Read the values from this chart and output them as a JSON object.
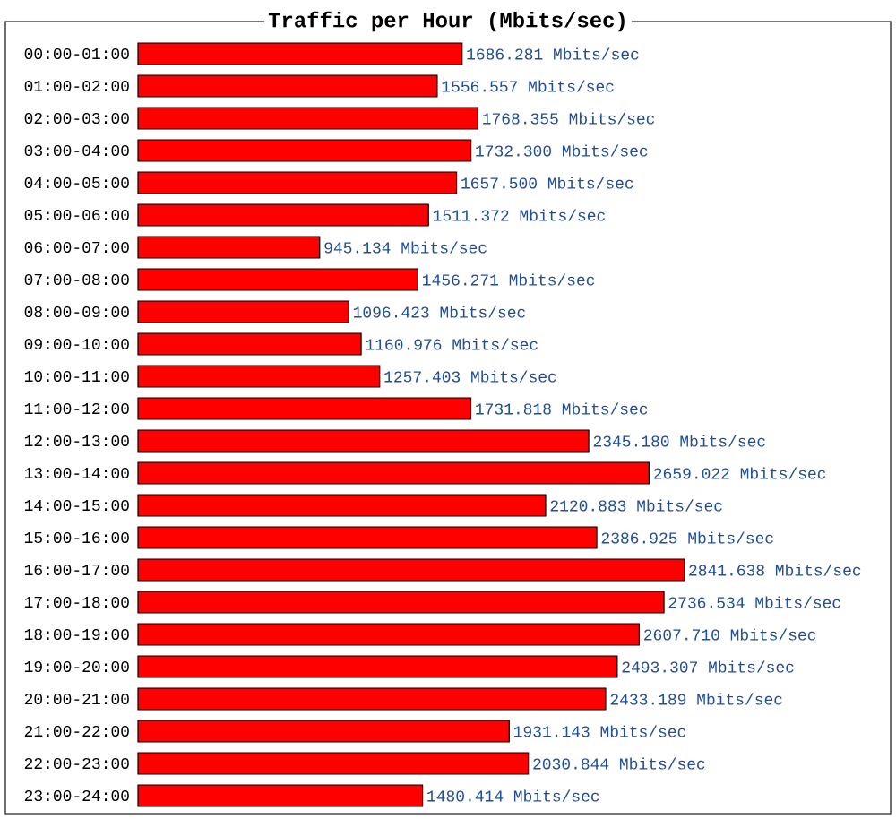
{
  "chart_data": {
    "type": "bar",
    "orientation": "horizontal",
    "title": "Traffic per Hour (Mbits/sec)",
    "categories": [
      "00:00-01:00",
      "01:00-02:00",
      "02:00-03:00",
      "03:00-04:00",
      "04:00-05:00",
      "05:00-06:00",
      "06:00-07:00",
      "07:00-08:00",
      "08:00-09:00",
      "09:00-10:00",
      "10:00-11:00",
      "11:00-12:00",
      "12:00-13:00",
      "13:00-14:00",
      "14:00-15:00",
      "15:00-16:00",
      "16:00-17:00",
      "17:00-18:00",
      "18:00-19:00",
      "19:00-20:00",
      "20:00-21:00",
      "21:00-22:00",
      "22:00-23:00",
      "23:00-24:00"
    ],
    "values": [
      1686.281,
      1556.557,
      1768.355,
      1732.3,
      1657.5,
      1511.372,
      945.134,
      1456.271,
      1096.423,
      1160.976,
      1257.403,
      1731.818,
      2345.18,
      2659.022,
      2120.883,
      2386.925,
      2841.638,
      2736.534,
      2607.71,
      2493.307,
      2433.189,
      1931.143,
      2030.844,
      1480.414
    ],
    "value_labels": [
      "1686.281 Mbits/sec",
      "1556.557 Mbits/sec",
      "1768.355 Mbits/sec",
      "1732.300 Mbits/sec",
      "1657.500 Mbits/sec",
      "1511.372 Mbits/sec",
      "945.134 Mbits/sec",
      "1456.271 Mbits/sec",
      "1096.423 Mbits/sec",
      "1160.976 Mbits/sec",
      "1257.403 Mbits/sec",
      "1731.818 Mbits/sec",
      "2345.180 Mbits/sec",
      "2659.022 Mbits/sec",
      "2120.883 Mbits/sec",
      "2386.925 Mbits/sec",
      "2841.638 Mbits/sec",
      "2736.534 Mbits/sec",
      "2607.710 Mbits/sec",
      "2493.307 Mbits/sec",
      "2433.189 Mbits/sec",
      "1931.143 Mbits/sec",
      "2030.844 Mbits/sec",
      "1480.414 Mbits/sec"
    ],
    "color": "#ff0000"
  }
}
